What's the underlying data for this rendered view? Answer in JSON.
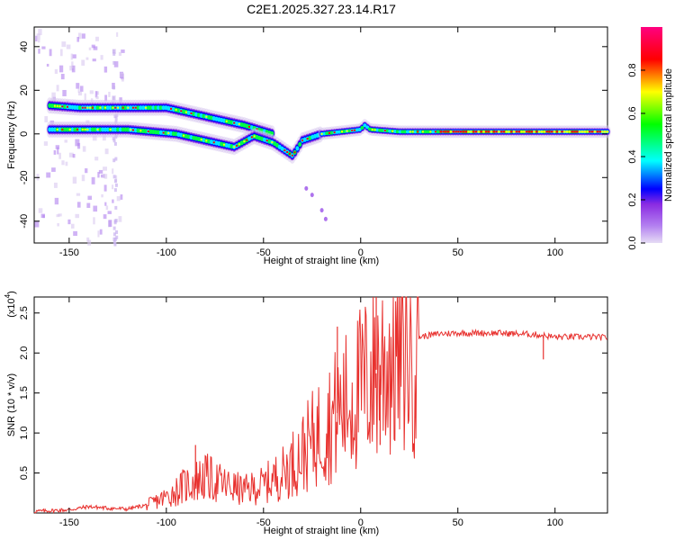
{
  "figure": {
    "title": "C2E1.2025.327.23.14.R17"
  },
  "chart_data": [
    {
      "type": "heatmap",
      "name": "spectrogram",
      "xlabel": "Height of straight line (km)",
      "ylabel": "Frequency (Hz)",
      "xlim": [
        -168,
        127
      ],
      "ylim": [
        -50,
        49
      ],
      "xticks": [
        -150,
        -100,
        -50,
        0,
        50,
        100
      ],
      "yticks": [
        -40,
        -20,
        0,
        20,
        40
      ],
      "colorbar": {
        "label": "Normalized spectral amplitude",
        "range": [
          0,
          1
        ],
        "ticks": [
          0.0,
          0.2,
          0.4,
          0.6,
          0.8
        ],
        "colormap": [
          "#d8c8f0",
          "#8a2be2",
          "#0000ff",
          "#00ffff",
          "#00ff00",
          "#ffff00",
          "#ff0000",
          "#ff0080"
        ]
      },
      "ridges": [
        {
          "name": "upper-band",
          "points": [
            [
              -160,
              13
            ],
            [
              -145,
              12
            ],
            [
              -125,
              12
            ],
            [
              -100,
              12
            ],
            [
              -80,
              8
            ],
            [
              -60,
              4
            ],
            [
              -45,
              0
            ]
          ]
        },
        {
          "name": "lower-band",
          "points": [
            [
              -160,
              2
            ],
            [
              -140,
              2
            ],
            [
              -120,
              2
            ],
            [
              -95,
              0
            ],
            [
              -80,
              -3
            ],
            [
              -65,
              -6
            ],
            [
              -55,
              -1
            ],
            [
              -45,
              -4
            ],
            [
              -35,
              -10
            ],
            [
              -30,
              -3
            ],
            [
              -20,
              0
            ]
          ]
        },
        {
          "name": "main-line",
          "points": [
            [
              -20,
              0
            ],
            [
              -10,
              1
            ],
            [
              0,
              2
            ],
            [
              2,
              4
            ],
            [
              5,
              2
            ],
            [
              20,
              1
            ],
            [
              50,
              1
            ],
            [
              80,
              1
            ],
            [
              100,
              1
            ],
            [
              127,
              1
            ]
          ]
        }
      ],
      "faint_features": [
        {
          "name": "dotted-trail",
          "points": [
            [
              -28,
              -25
            ],
            [
              -25,
              -28
            ],
            [
              -20,
              -35
            ],
            [
              -18,
              -39
            ]
          ]
        }
      ]
    },
    {
      "type": "line",
      "name": "snr",
      "xlabel": "Height of straight line (km)",
      "ylabel": "SNR (10 * v/v)",
      "exponent_label": "(x10",
      "exponent_power": "4",
      "exponent_close": ")",
      "color": "#e8312e",
      "xlim": [
        -168,
        127
      ],
      "ylim": [
        0,
        2.7
      ],
      "xticks": [
        -150,
        -100,
        -50,
        0,
        50,
        100
      ],
      "yticks": [
        0.5,
        1.0,
        1.5,
        2.0,
        2.5
      ],
      "yticklabels": [
        "0.5",
        "1.0",
        "1.5",
        "2.0",
        "2.5"
      ],
      "envelope_x": [
        -168,
        -150,
        -140,
        -130,
        -120,
        -110,
        -100,
        -90,
        -80,
        -70,
        -60,
        -50,
        -40,
        -30,
        -20,
        -10,
        0,
        10,
        20,
        30,
        40,
        50,
        60,
        70,
        80,
        90,
        100,
        110,
        120,
        127
      ],
      "envelope_y": [
        0.02,
        0.04,
        0.08,
        0.06,
        0.05,
        0.1,
        0.2,
        0.35,
        0.45,
        0.35,
        0.28,
        0.35,
        0.5,
        0.75,
        1.05,
        1.3,
        1.55,
        1.85,
        2.05,
        2.2,
        2.24,
        2.25,
        2.25,
        2.25,
        2.24,
        2.23,
        2.2,
        2.2,
        2.2,
        2.19
      ],
      "spikes": [
        {
          "x": 8,
          "y": 2.75
        },
        {
          "x": 10,
          "y": 0.85
        },
        {
          "x": -12,
          "y": 2.33
        },
        {
          "x": 94,
          "y": 1.92
        },
        {
          "x": -85,
          "y": 0.85
        }
      ]
    }
  ]
}
